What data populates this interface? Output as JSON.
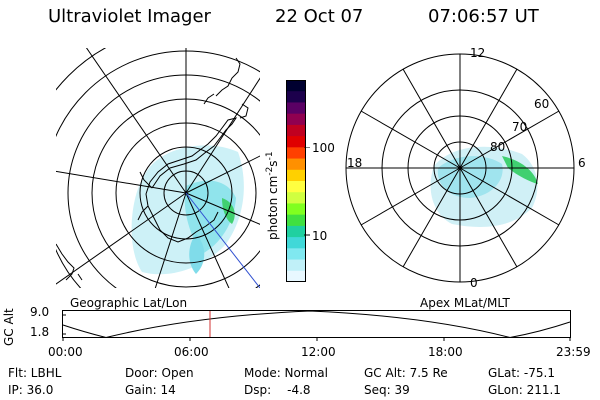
{
  "header": {
    "instrument": "Ultraviolet Imager",
    "date": "22 Oct 07",
    "time": "07:06:57 UT"
  },
  "colorbar": {
    "label_base": "photon cm",
    "label_exp1": "-2",
    "label_mid": "s",
    "label_exp2": "-1",
    "tick_100": "100",
    "tick_10": "10",
    "colors": [
      "#000030",
      "#1c004c",
      "#5a0064",
      "#900050",
      "#c00020",
      "#e00000",
      "#ff4000",
      "#ff9000",
      "#ffd000",
      "#ffff40",
      "#d0ff40",
      "#80ff20",
      "#40e040",
      "#20d0a0",
      "#40d8d8",
      "#80e8f0",
      "#c0f0f8",
      "#e8f8ff"
    ]
  },
  "geo_map": {
    "label": "Geographic Lat/Lon"
  },
  "apex_map": {
    "label": "Apex MLat/MLT",
    "mlt_12": "12",
    "mlt_18": "18",
    "mlt_6": "6",
    "mlt_0": "0",
    "mlat_60": "60",
    "mlat_70": "70",
    "mlat_80": "80"
  },
  "altitude_plot": {
    "ylabel": "GC Alt",
    "ytick_high": "9.0",
    "ytick_low": "1.8",
    "xticks": [
      "00:00",
      "06:00",
      "12:00",
      "18:00",
      "23:59"
    ]
  },
  "info": {
    "filter": "Flt: LBHL",
    "ip": "IP: 36.0",
    "door": "Door: Open",
    "gain": "Gain: 14",
    "mode": "Mode: Normal",
    "dsp_label": "Dsp:",
    "dsp_value": "-4.8",
    "gc_alt": "GC Alt: 7.5 Re",
    "seq": "Seq: 39",
    "glat": "GLat: -75.1",
    "glon": "GLon: 211.1"
  }
}
